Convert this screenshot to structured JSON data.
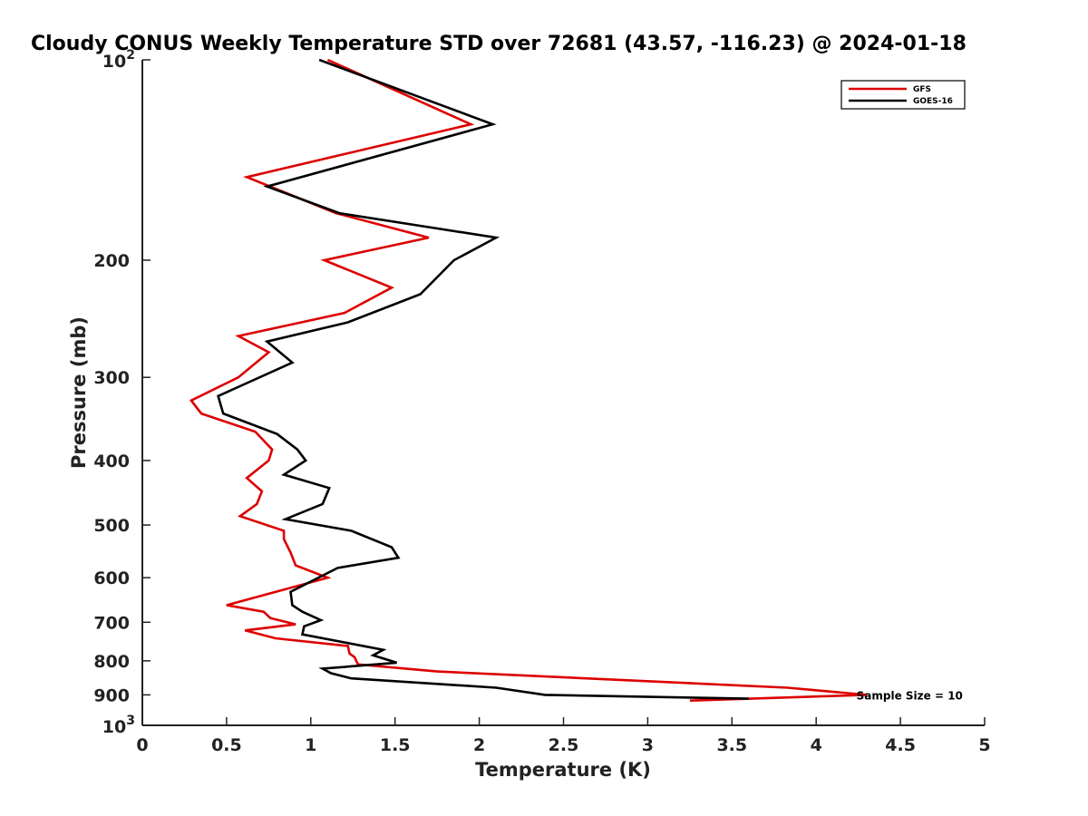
{
  "chart_data": {
    "type": "line",
    "title": "Cloudy CONUS Weekly Temperature STD over 72681 (43.57, -116.23) @ 2024-01-18",
    "xlabel": "Temperature (K)",
    "ylabel": "Pressure (mb)",
    "xlim": [
      0,
      5
    ],
    "ylim": [
      1000,
      100
    ],
    "yscale": "log",
    "x_ticks": [
      {
        "value": 0,
        "label": "0"
      },
      {
        "value": 0.5,
        "label": "0.5"
      },
      {
        "value": 1,
        "label": "1"
      },
      {
        "value": 1.5,
        "label": "1.5"
      },
      {
        "value": 2,
        "label": "2"
      },
      {
        "value": 2.5,
        "label": "2.5"
      },
      {
        "value": 3,
        "label": "3"
      },
      {
        "value": 3.5,
        "label": "3.5"
      },
      {
        "value": 4,
        "label": "4"
      },
      {
        "value": 4.5,
        "label": "4.5"
      },
      {
        "value": 5,
        "label": "5"
      }
    ],
    "y_ticks": [
      {
        "value": 200,
        "label": "200"
      },
      {
        "value": 300,
        "label": "300"
      },
      {
        "value": 400,
        "label": "400"
      },
      {
        "value": 500,
        "label": "500"
      },
      {
        "value": 600,
        "label": "600"
      },
      {
        "value": 700,
        "label": "700"
      },
      {
        "value": 800,
        "label": "800"
      },
      {
        "value": 900,
        "label": "900"
      }
    ],
    "y_ticks_power": [
      {
        "value": 100,
        "base": "10",
        "exp": "2"
      },
      {
        "value": 1000,
        "base": "10",
        "exp": "3"
      }
    ],
    "legend": "top-right",
    "grid": false,
    "annotations": [
      {
        "text": "Sample Size = 10",
        "x": 4.25,
        "y": 900
      }
    ],
    "series": [
      {
        "name": "GFS",
        "color": "#dd0000",
        "points": [
          [
            1.1,
            100
          ],
          [
            1.95,
            125
          ],
          [
            0.62,
            150
          ],
          [
            1.15,
            170
          ],
          [
            1.7,
            185
          ],
          [
            1.08,
            200
          ],
          [
            1.48,
            220
          ],
          [
            1.2,
            240
          ],
          [
            0.57,
            260
          ],
          [
            0.75,
            275
          ],
          [
            0.57,
            300
          ],
          [
            0.29,
            325
          ],
          [
            0.35,
            340
          ],
          [
            0.67,
            362
          ],
          [
            0.77,
            385
          ],
          [
            0.75,
            400
          ],
          [
            0.62,
            425
          ],
          [
            0.71,
            445
          ],
          [
            0.68,
            465
          ],
          [
            0.58,
            485
          ],
          [
            0.84,
            510
          ],
          [
            0.84,
            525
          ],
          [
            0.88,
            550
          ],
          [
            0.91,
            575
          ],
          [
            1.1,
            600
          ],
          [
            0.5,
            660
          ],
          [
            0.72,
            675
          ],
          [
            0.76,
            690
          ],
          [
            0.91,
            705
          ],
          [
            0.61,
            720
          ],
          [
            0.79,
            740
          ],
          [
            1.22,
            760
          ],
          [
            1.23,
            780
          ],
          [
            1.26,
            790
          ],
          [
            1.28,
            810
          ],
          [
            1.75,
            830
          ],
          [
            3.83,
            878
          ],
          [
            4.3,
            900
          ],
          [
            3.25,
            918
          ]
        ]
      },
      {
        "name": "GOES-16",
        "color": "#000000",
        "points": [
          [
            1.05,
            100
          ],
          [
            2.08,
            125
          ],
          [
            0.74,
            155
          ],
          [
            1.17,
            170
          ],
          [
            2.1,
            185
          ],
          [
            1.85,
            200
          ],
          [
            1.65,
            225
          ],
          [
            1.22,
            248
          ],
          [
            0.74,
            265
          ],
          [
            0.89,
            285
          ],
          [
            0.45,
            320
          ],
          [
            0.48,
            340
          ],
          [
            0.8,
            365
          ],
          [
            0.92,
            385
          ],
          [
            0.97,
            400
          ],
          [
            0.84,
            420
          ],
          [
            1.11,
            440
          ],
          [
            1.07,
            465
          ],
          [
            0.85,
            490
          ],
          [
            1.24,
            510
          ],
          [
            1.48,
            540
          ],
          [
            1.52,
            560
          ],
          [
            1.16,
            580
          ],
          [
            0.88,
            630
          ],
          [
            0.89,
            660
          ],
          [
            0.95,
            675
          ],
          [
            1.06,
            695
          ],
          [
            0.96,
            710
          ],
          [
            0.95,
            730
          ],
          [
            1.43,
            770
          ],
          [
            1.37,
            785
          ],
          [
            1.51,
            805
          ],
          [
            1.07,
            822
          ],
          [
            1.12,
            835
          ],
          [
            1.24,
            850
          ],
          [
            2.1,
            878
          ],
          [
            2.39,
            900
          ],
          [
            3.6,
            912
          ]
        ]
      }
    ]
  }
}
